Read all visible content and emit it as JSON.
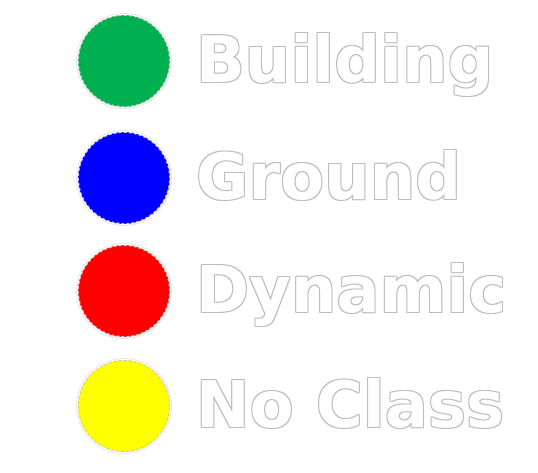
{
  "legend": {
    "items": [
      {
        "label": "Building",
        "color": "#00b050"
      },
      {
        "label": "Ground",
        "color": "#0000ff"
      },
      {
        "label": "Dynamic",
        "color": "#ff0000"
      },
      {
        "label": "No Class",
        "color": "#ffff00"
      }
    ]
  }
}
